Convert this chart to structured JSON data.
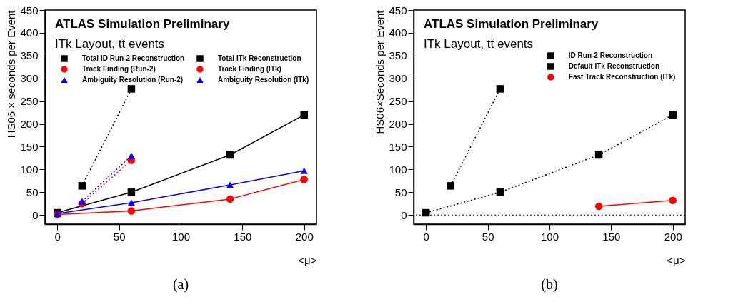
{
  "chart_data": [
    {
      "type": "line",
      "xlabel": "<μ>",
      "ylabel": "HS06 × seconds per Event",
      "xlim": [
        -10,
        210
      ],
      "ylim": [
        -20,
        450
      ],
      "xticks": [
        0,
        50,
        100,
        150,
        200
      ],
      "yticks": [
        0,
        50,
        100,
        150,
        200,
        250,
        300,
        350,
        400,
        450
      ],
      "grid": false,
      "legend": "top left",
      "annotations": [
        "ATLAS Simulation Preliminary",
        "ITk Layout, tt̄ events",
        "(a)"
      ],
      "series": [
        {
          "name": "Total ID Run-2 Reconstruction",
          "color": "#000000",
          "x": [
            20,
            60
          ],
          "values": [
            64,
            277
          ],
          "marker": "square",
          "line_style": "dotted"
        },
        {
          "name": "Total ITk Reconstruction",
          "color": "#000000",
          "x": [
            0,
            60,
            140,
            200
          ],
          "values": [
            5,
            50,
            132,
            220
          ],
          "marker": "square",
          "line_style": "solid"
        },
        {
          "name": "Track Finding (Run-2)",
          "color": "#ff0000",
          "x": [
            20,
            60
          ],
          "values": [
            25,
            120
          ],
          "marker": "circle",
          "line_style": "dotted"
        },
        {
          "name": "Track Finding (ITk)",
          "color": "#ff0000",
          "x": [
            0,
            60,
            140,
            200
          ],
          "values": [
            1,
            9,
            35,
            78
          ],
          "marker": "circle",
          "line_style": "solid"
        },
        {
          "name": "Ambiguity Resolution (Run-2)",
          "color": "#0000ff",
          "x": [
            20,
            60
          ],
          "values": [
            30,
            130
          ],
          "marker": "triangle",
          "line_style": "dotted"
        },
        {
          "name": "Ambiguity Resolution (ITk)",
          "color": "#0000ff",
          "x": [
            0,
            60,
            140,
            200
          ],
          "values": [
            3,
            27,
            66,
            97
          ],
          "marker": "triangle",
          "line_style": "solid"
        }
      ]
    },
    {
      "type": "line",
      "xlabel": "<μ>",
      "ylabel": "HS06×Seconds per Event",
      "xlim": [
        -10,
        210
      ],
      "ylim": [
        -20,
        450
      ],
      "xticks": [
        0,
        50,
        100,
        150,
        200
      ],
      "yticks": [
        0,
        50,
        100,
        150,
        200,
        250,
        300,
        350,
        400,
        450
      ],
      "grid": false,
      "legend": "top right",
      "annotations": [
        "ATLAS Simulation Preliminary",
        "ITk Layout, tt̄ events",
        "(b)"
      ],
      "ref_lines": [
        {
          "axis": "y",
          "value": 0,
          "color": "#000000",
          "line_style": "dotted"
        }
      ],
      "series": [
        {
          "name": "ID Run-2 Reconstruction",
          "color": "#000000",
          "x": [
            20,
            60
          ],
          "values": [
            64,
            277
          ],
          "marker": "square",
          "line_style": "dotted"
        },
        {
          "name": "Default  ITk Reconstruction",
          "color": "#000000",
          "x": [
            0,
            60,
            140,
            200
          ],
          "values": [
            5,
            50,
            132,
            220
          ],
          "marker": "square",
          "line_style": "dotted"
        },
        {
          "name": "Fast Track Reconstruction (ITk)",
          "color": "#ff0000",
          "x": [
            140,
            200
          ],
          "values": [
            19,
            32
          ],
          "marker": "circle",
          "line_style": "solid"
        }
      ]
    }
  ]
}
